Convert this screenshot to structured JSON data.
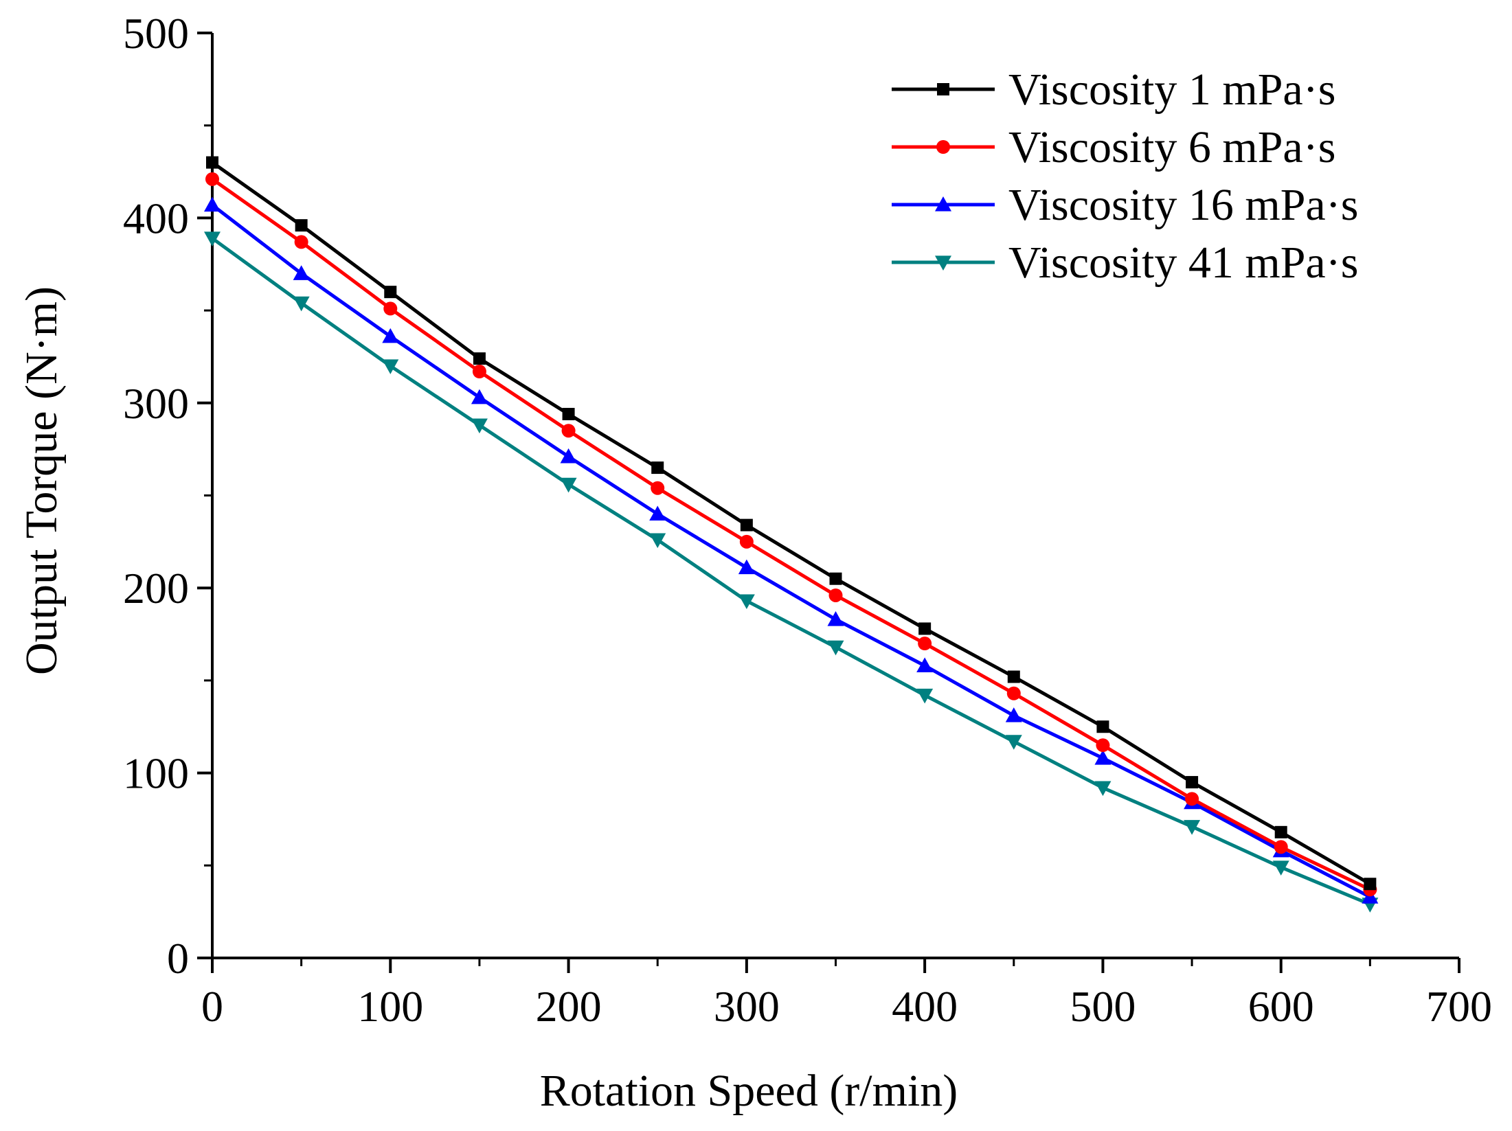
{
  "chart_data": {
    "type": "line",
    "xlabel": "Rotation Speed (r/min)",
    "ylabel": "Output Torque (N·m)",
    "xlim": [
      0,
      700
    ],
    "ylim": [
      0,
      500
    ],
    "xticks": [
      0,
      100,
      200,
      300,
      400,
      500,
      600,
      700
    ],
    "yticks": [
      0,
      100,
      200,
      300,
      400,
      500
    ],
    "x": [
      0,
      50,
      100,
      150,
      200,
      250,
      300,
      350,
      400,
      450,
      500,
      550,
      600,
      650
    ],
    "grid": false,
    "legend_position": "top-right",
    "series": [
      {
        "name": "Viscosity 1 mPa·s",
        "color": "#000000",
        "marker": "square",
        "values": [
          430,
          396,
          360,
          324,
          294,
          265,
          234,
          205,
          178,
          152,
          125,
          95,
          68,
          40
        ]
      },
      {
        "name": "Viscosity 6 mPa·s",
        "color": "#ff0000",
        "marker": "circle",
        "values": [
          421,
          387,
          351,
          317,
          285,
          254,
          225,
          196,
          170,
          143,
          115,
          86,
          60,
          37
        ]
      },
      {
        "name": "Viscosity 16 mPa·s",
        "color": "#0000ff",
        "marker": "triangle-up",
        "values": [
          407,
          370,
          336,
          303,
          271,
          240,
          211,
          183,
          158,
          131,
          108,
          84,
          58,
          33
        ]
      },
      {
        "name": "Viscosity 41 mPa·s",
        "color": "#008080",
        "marker": "triangle-down",
        "values": [
          389,
          354,
          320,
          288,
          256,
          226,
          193,
          168,
          142,
          117,
          92,
          71,
          49,
          29
        ]
      }
    ]
  }
}
